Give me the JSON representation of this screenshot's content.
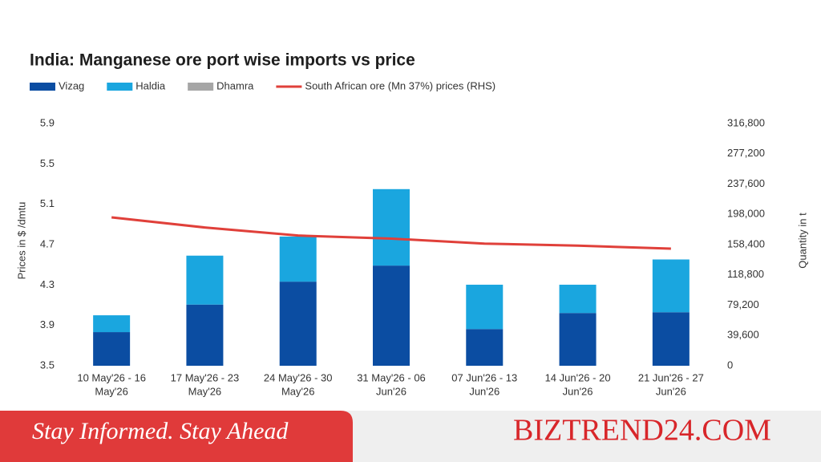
{
  "chart_data": {
    "type": "bar",
    "title": "India: Manganese ore port wise imports vs price",
    "y_label": "Prices in $ /dmtu",
    "y2_label": "Quantity in t",
    "categories": [
      [
        "10 May'26 - 16",
        "May'26"
      ],
      [
        "17 May'26 - 23",
        "May'26"
      ],
      [
        "24 May'26 - 30",
        "May'26"
      ],
      [
        "31 May'26 - 06",
        "Jun'26"
      ],
      [
        "07 Jun'26 - 13",
        "Jun'26"
      ],
      [
        "14 Jun'26 - 20",
        "Jun'26"
      ],
      [
        "21 Jun'26 - 27",
        "Jun'26"
      ]
    ],
    "series": [
      {
        "name": "Vizag",
        "type": "bar",
        "axis": "y2",
        "color": "#0b4da2",
        "values": [
          44000,
          80000,
          110000,
          131000,
          48000,
          69000,
          70000
        ]
      },
      {
        "name": "Haldia",
        "type": "bar",
        "axis": "y2",
        "color": "#1aa6df",
        "values": [
          22000,
          64000,
          59000,
          100000,
          58000,
          37000,
          69000
        ]
      },
      {
        "name": "Dhamra",
        "type": "bar",
        "axis": "y2",
        "color": "#a6a6a6",
        "values": [
          0,
          0,
          0,
          0,
          0,
          0,
          0
        ]
      },
      {
        "name": "South African ore (Mn 37%) prices (RHS)",
        "type": "line",
        "axis": "y",
        "color": "#e0403a",
        "values": [
          4.97,
          4.87,
          4.79,
          4.76,
          4.71,
          4.69,
          4.66
        ]
      }
    ],
    "ylim": [
      3.5,
      5.9
    ],
    "yticks": [
      3.5,
      3.9,
      4.3,
      4.7,
      5.1,
      5.5,
      5.9
    ],
    "y2lim": [
      0,
      316800
    ],
    "y2ticks": [
      0,
      {
        "value": 39600,
        "label": "39,600"
      },
      {
        "value": 79200,
        "label": "79,200"
      },
      {
        "value": 118800,
        "label": "118,800"
      },
      {
        "value": 158400,
        "label": "158,400"
      },
      {
        "value": 198000,
        "label": "198,000"
      },
      {
        "value": 237600,
        "label": "237,600"
      },
      {
        "value": 277200,
        "label": "277,200"
      },
      {
        "value": 316800,
        "label": "316,800"
      }
    ]
  },
  "banner": {
    "tagline": "Stay Informed. Stay Ahead",
    "brand": "BIZTREND24.COM"
  }
}
